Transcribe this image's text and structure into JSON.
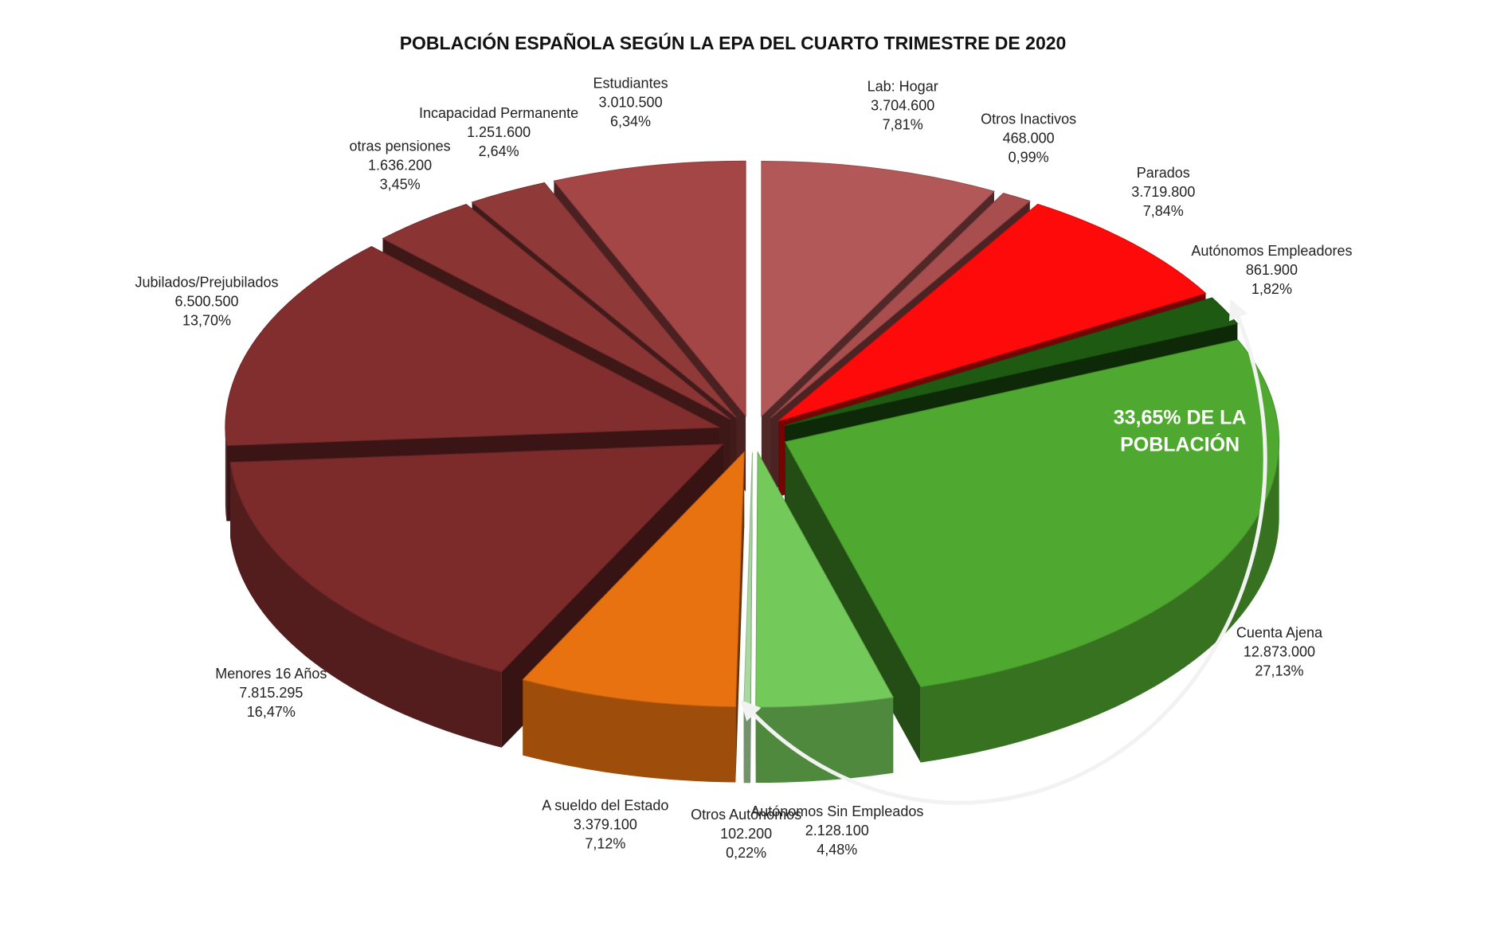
{
  "chart_data": {
    "type": "pie",
    "title": "POBLACIÓN ESPAÑOLA SEGÚN LA EPA DEL CUARTO TRIMESTRE DE 2020",
    "categories": [
      "Lab: Hogar",
      "Otros Inactivos",
      "Parados",
      "Autónomos Empleadores",
      "Cuenta Ajena",
      "Autónomos Sin Empleados",
      "Otros Autónomos",
      "A sueldo del Estado",
      "Menores 16 Años",
      "Jubilados/Prejubilados",
      "otras pensiones",
      "Incapacidad Permanente",
      "Estudiantes"
    ],
    "values": [
      3704600,
      468000,
      3719800,
      861900,
      12873000,
      2128100,
      102200,
      3379100,
      7815295,
      6500500,
      1636200,
      1251600,
      3010500
    ],
    "value_labels": [
      "3.704.600",
      "468.000",
      "3.719.800",
      "861.900",
      "12.873.000",
      "2.128.100",
      "102.200",
      "3.379.100",
      "7.815.295",
      "6.500.500",
      "1.636.200",
      "1.251.600",
      "3.010.500"
    ],
    "percentages": [
      7.81,
      0.99,
      7.84,
      1.82,
      27.13,
      4.48,
      0.22,
      7.12,
      16.47,
      13.7,
      3.45,
      2.64,
      6.34
    ],
    "percentage_labels": [
      "7,81%",
      "0,99%",
      "7,84%",
      "1,82%",
      "27,13%",
      "4,48%",
      "0,22%",
      "7,12%",
      "16,47%",
      "13,70%",
      "3,45%",
      "2,64%",
      "6,34%"
    ],
    "colors": [
      "#b25858",
      "#a84e4e",
      "#ff0a0a",
      "#1f5a12",
      "#4fa82f",
      "#74c95b",
      "#a9d8a0",
      "#e8720f",
      "#7c2a2a",
      "#822e2e",
      "#8a3434",
      "#903939",
      "#a54646"
    ],
    "annotation": [
      "33,65% DE LA",
      "POBLACIÓN"
    ]
  }
}
